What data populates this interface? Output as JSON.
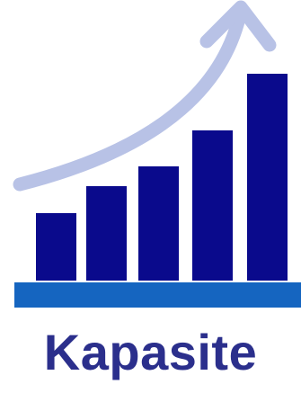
{
  "caption": "Kapasite",
  "icon": "growth-bar-chart-icon",
  "colors": {
    "bars": "#0a0a8c",
    "arrow": "#b8c2e6",
    "baseline": "#1565c0",
    "caption": "#2b2f8c"
  }
}
